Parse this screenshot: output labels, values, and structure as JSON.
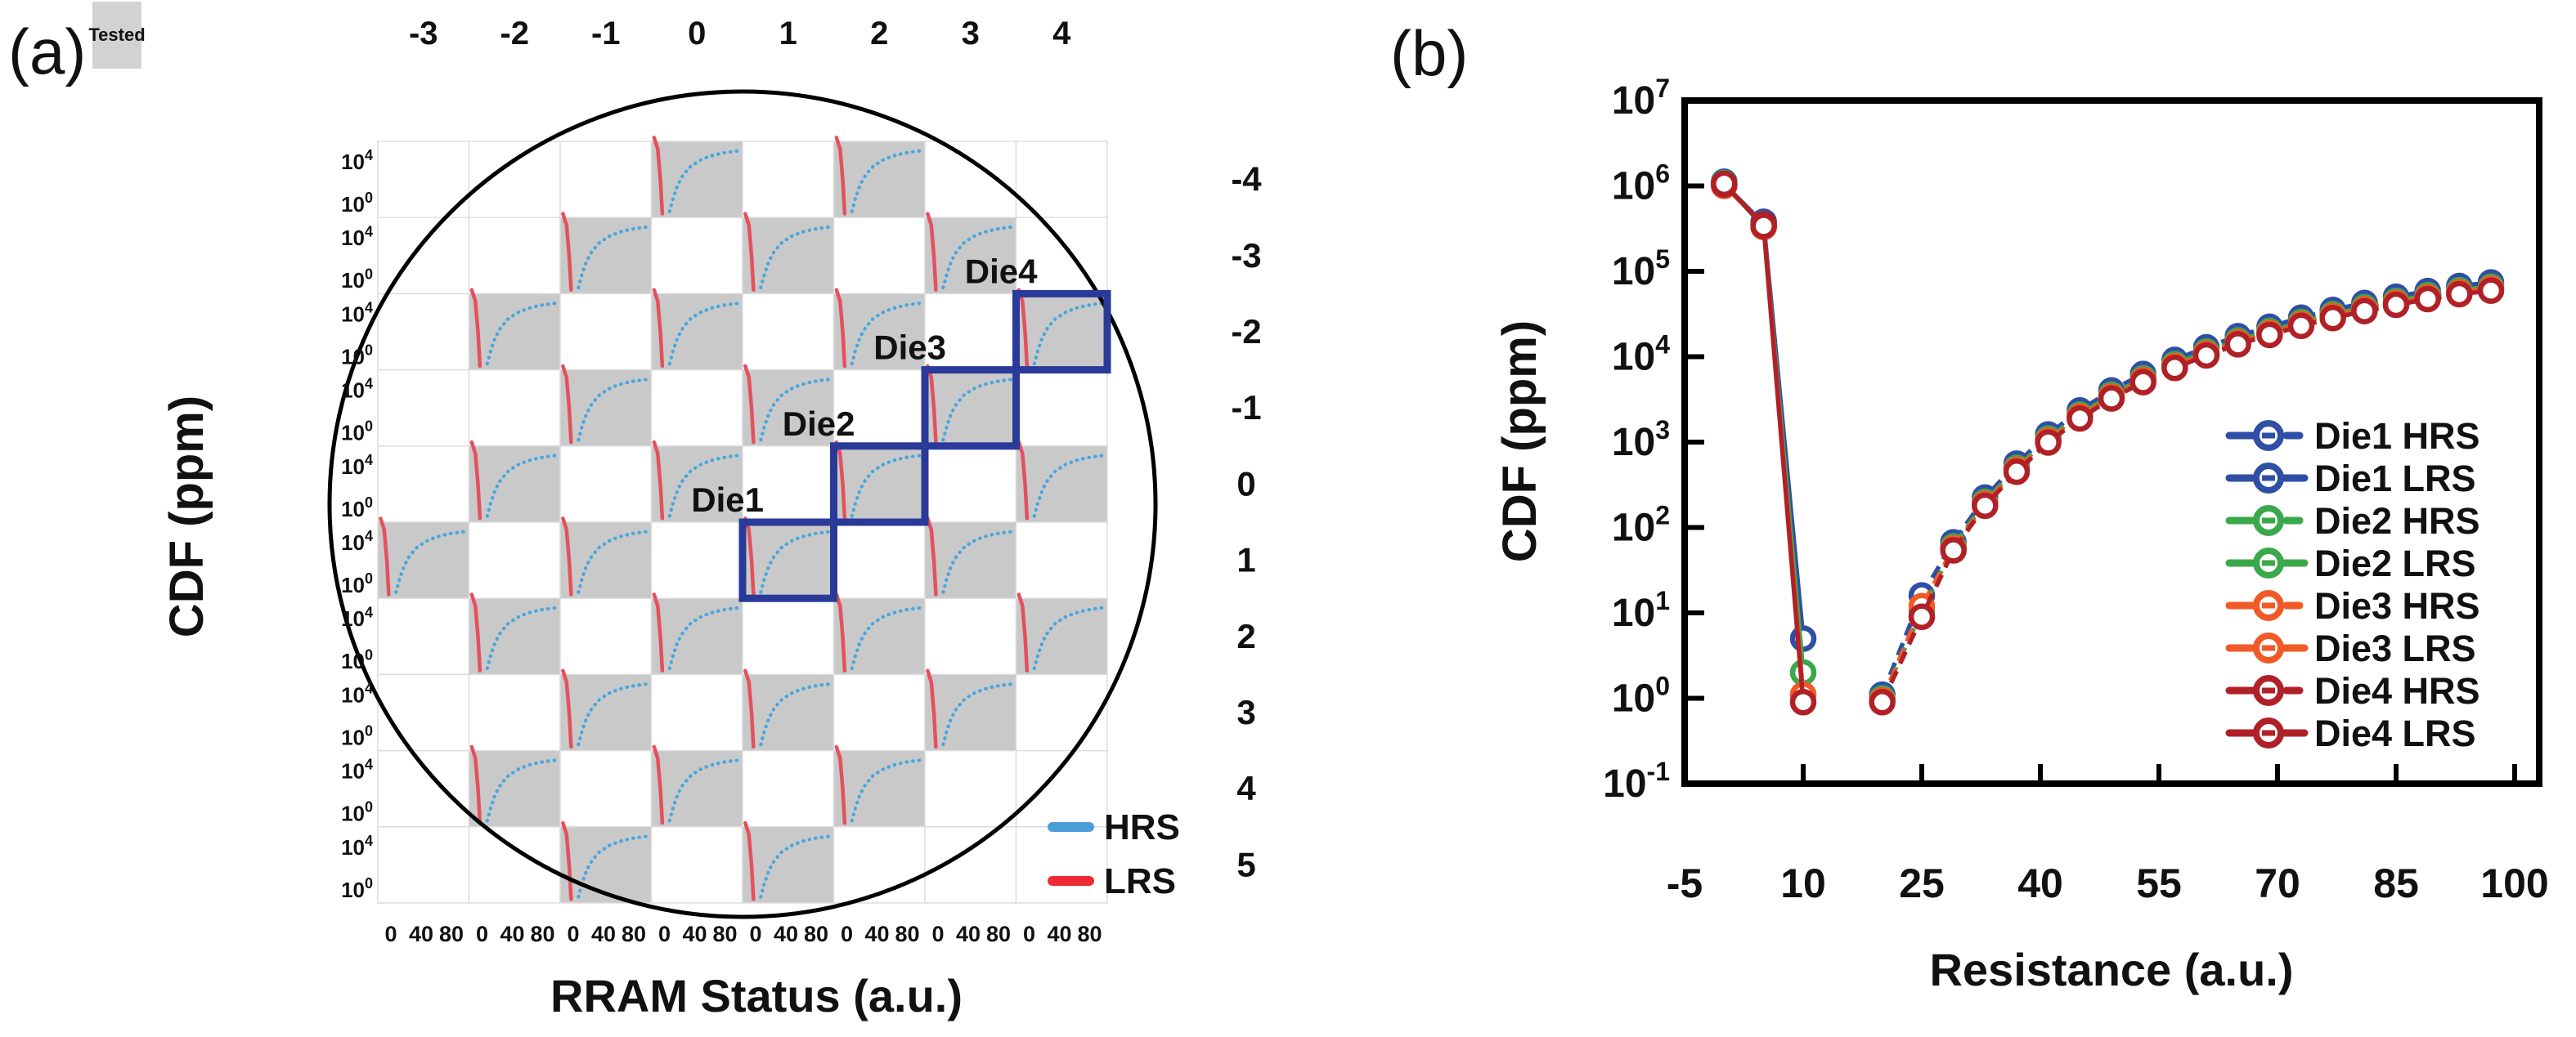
{
  "panel_a": {
    "label": "(a)",
    "tested_chip": {
      "label": "Tested",
      "fill": "#d2d2d2"
    },
    "col_labels": [
      "-3",
      "-2",
      "-1",
      "0",
      "1",
      "2",
      "3",
      "4"
    ],
    "row_labels": [
      "-4",
      "-3",
      "-2",
      "-1",
      "0",
      "1",
      "2",
      "3",
      "4",
      "5"
    ],
    "y_axis_title": "CDF (ppm)",
    "x_axis_title": "RRAM Status (a.u.)",
    "cell_y_tick_base": "10",
    "cell_y_tick_exponents": [
      "4",
      "0"
    ],
    "cell_x_tick_labels": [
      "0",
      "40",
      "80"
    ],
    "legend": [
      {
        "label": "HRS",
        "color": "#4a9fd8"
      },
      {
        "label": "LRS",
        "color": "#ee2b33"
      }
    ],
    "colors": {
      "tested_fill": "#c9c9c9",
      "grid_line": "#dcdcdc",
      "wafer_outline": "#000000",
      "mini_hrs": "#49a6dc",
      "mini_lrs": "#e4505e",
      "die_accent": "#2a3a99"
    }
  },
  "panel_b": {
    "label": "(b)",
    "y_axis_title": "CDF (ppm)",
    "x_axis_title": "Resistance (a.u.)",
    "y_tick_base": "10",
    "y_tick_exponents": [
      "7",
      "6",
      "5",
      "4",
      "3",
      "2",
      "1",
      "0",
      "-1"
    ],
    "x_tick_labels": [
      "-5",
      "10",
      "25",
      "40",
      "55",
      "70",
      "85",
      "100"
    ],
    "legend": [
      {
        "label": "Die1 HRS",
        "color": "#2e4fa5",
        "style": "dashed"
      },
      {
        "label": "Die1 LRS",
        "color": "#2e4fa5",
        "style": "solid"
      },
      {
        "label": "Die2 HRS",
        "color": "#3aa84b",
        "style": "dashed"
      },
      {
        "label": "Die2 LRS",
        "color": "#3aa84b",
        "style": "solid"
      },
      {
        "label": "Die3 HRS",
        "color": "#f15a26",
        "style": "dashed"
      },
      {
        "label": "Die3 LRS",
        "color": "#f15a26",
        "style": "solid"
      },
      {
        "label": "Die4 HRS",
        "color": "#b02127",
        "style": "dashed"
      },
      {
        "label": "Die4 LRS",
        "color": "#b02127",
        "style": "solid"
      }
    ]
  },
  "chart_data": [
    {
      "type": "heatmap",
      "title": "Wafer map of tested RRAM dies",
      "columns": [
        -3,
        -2,
        -1,
        0,
        1,
        2,
        3,
        4
      ],
      "rows": [
        -4,
        -3,
        -2,
        -1,
        0,
        1,
        2,
        3,
        4,
        5
      ],
      "tested_cells": [
        [
          0,
          3
        ],
        [
          0,
          5
        ],
        [
          1,
          2
        ],
        [
          1,
          4
        ],
        [
          1,
          6
        ],
        [
          2,
          1
        ],
        [
          2,
          3
        ],
        [
          2,
          5
        ],
        [
          2,
          7
        ],
        [
          3,
          2
        ],
        [
          3,
          4
        ],
        [
          3,
          6
        ],
        [
          4,
          1
        ],
        [
          4,
          3
        ],
        [
          4,
          5
        ],
        [
          4,
          7
        ],
        [
          5,
          0
        ],
        [
          5,
          2
        ],
        [
          5,
          4
        ],
        [
          5,
          6
        ],
        [
          6,
          1
        ],
        [
          6,
          3
        ],
        [
          6,
          5
        ],
        [
          6,
          7
        ],
        [
          7,
          2
        ],
        [
          7,
          4
        ],
        [
          7,
          6
        ],
        [
          8,
          1
        ],
        [
          8,
          3
        ],
        [
          8,
          5
        ],
        [
          9,
          2
        ],
        [
          9,
          4
        ]
      ],
      "dies": [
        {
          "label": "Die1",
          "row": 5,
          "col": 4
        },
        {
          "label": "Die2",
          "row": 4,
          "col": 5
        },
        {
          "label": "Die3",
          "row": 3,
          "col": 6
        },
        {
          "label": "Die4",
          "row": 2,
          "col": 7
        }
      ],
      "cell_plot": {
        "x_range": [
          0,
          80
        ],
        "y_decades": [
          0,
          4
        ],
        "lrs_points": [
          [
            0.03,
            -0.05
          ],
          [
            0.07,
            0.1
          ],
          [
            0.1,
            0.52
          ],
          [
            0.12,
            0.95
          ]
        ],
        "hrs_points": [
          [
            0.2,
            0.92
          ],
          [
            0.24,
            0.74
          ],
          [
            0.29,
            0.57
          ],
          [
            0.35,
            0.44
          ],
          [
            0.43,
            0.33
          ],
          [
            0.53,
            0.25
          ],
          [
            0.64,
            0.195
          ],
          [
            0.77,
            0.155
          ],
          [
            0.91,
            0.13
          ],
          [
            1.0,
            0.12
          ]
        ]
      }
    },
    {
      "type": "line",
      "title": "CDF vs Resistance for Die1-Die4",
      "xlabel": "Resistance (a.u.)",
      "ylabel": "CDF (ppm)",
      "xlim": [
        -5,
        100
      ],
      "yscale": "log",
      "ylim": [
        0.1,
        10000000
      ],
      "x_ticks": [
        -5,
        10,
        25,
        40,
        55,
        70,
        85,
        100
      ],
      "legend_position": "right-inside",
      "series": [
        {
          "name": "Die1 HRS",
          "color": "#2e4fa5",
          "style": "dashed",
          "line_from": 2,
          "x": [
            0,
            5,
            20,
            25,
            29,
            33,
            37,
            41,
            45,
            49,
            53,
            57,
            61,
            65,
            69,
            73,
            77,
            81,
            85,
            89,
            93,
            97
          ],
          "y": [
            1120000,
            380000,
            1.1,
            16,
            67,
            224,
            560,
            1230,
            2350,
            4030,
            6270,
            9180,
            12900,
            17400,
            22400,
            28600,
            35300,
            42600,
            50400,
            58800,
            67200,
            74000
          ]
        },
        {
          "name": "Die1 LRS",
          "color": "#2e4fa5",
          "style": "solid",
          "line_from": 0,
          "x": [
            0,
            5,
            10
          ],
          "y": [
            1050000,
            360000,
            5
          ]
        },
        {
          "name": "Die2 HRS",
          "color": "#3aa84b",
          "style": "dashed",
          "line_from": 2,
          "x": [
            0,
            5,
            20,
            25,
            29,
            33,
            37,
            41,
            45,
            49,
            53,
            57,
            61,
            65,
            69,
            73,
            77,
            81,
            85,
            89,
            93,
            97
          ],
          "y": [
            1060000,
            345000,
            1,
            10.5,
            60,
            200,
            500,
            1100,
            2100,
            3600,
            5600,
            8200,
            11500,
            15500,
            20000,
            25500,
            31500,
            38000,
            45000,
            52500,
            60000,
            66000
          ]
        },
        {
          "name": "Die2 LRS",
          "color": "#3aa84b",
          "style": "solid",
          "line_from": 0,
          "x": [
            0,
            5,
            10
          ],
          "y": [
            1080000,
            330000,
            2
          ]
        },
        {
          "name": "Die3 HRS",
          "color": "#f15a26",
          "style": "dashed",
          "line_from": 2,
          "x": [
            0,
            5,
            20,
            25,
            29,
            33,
            37,
            41,
            45,
            49,
            53,
            57,
            61,
            65,
            69,
            73,
            77,
            81,
            85,
            89,
            93,
            97
          ],
          "y": [
            1000000,
            330000,
            0.95,
            12,
            57,
            190,
            475,
            1045,
            1995,
            3420,
            5320,
            7790,
            10925,
            14725,
            19000,
            24225,
            29925,
            36100,
            42750,
            49875,
            57000,
            62700
          ]
        },
        {
          "name": "Die3 LRS",
          "color": "#f15a26",
          "style": "solid",
          "line_from": 0,
          "x": [
            0,
            5,
            10
          ],
          "y": [
            1020000,
            350000,
            1.1
          ]
        },
        {
          "name": "Die4 HRS",
          "color": "#b02127",
          "style": "dashed",
          "line_from": 2,
          "x": [
            0,
            5,
            20,
            25,
            29,
            33,
            37,
            41,
            45,
            49,
            53,
            57,
            61,
            65,
            69,
            73,
            77,
            81,
            85,
            89,
            93,
            97
          ],
          "y": [
            1040000,
            355000,
            0.9,
            9,
            54,
            180,
            450,
            990,
            1890,
            3240,
            5040,
            7380,
            10350,
            13950,
            18000,
            22950,
            28350,
            34200,
            40500,
            47250,
            54000,
            59400
          ]
        },
        {
          "name": "Die4 LRS",
          "color": "#b02127",
          "style": "solid",
          "line_from": 0,
          "x": [
            0,
            5,
            10
          ],
          "y": [
            1060000,
            340000,
            0.9
          ]
        }
      ]
    }
  ]
}
